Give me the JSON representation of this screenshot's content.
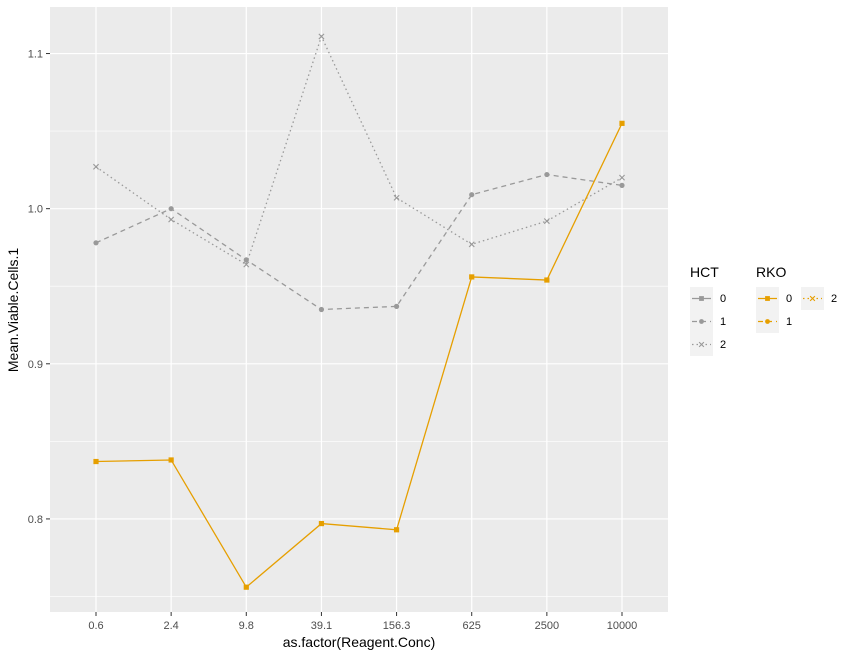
{
  "chart_data": {
    "type": "line",
    "xlabel": "as.factor(Reagent.Conc)",
    "ylabel": "Mean.Viable.Cells.1",
    "categories": [
      "0.6",
      "2.4",
      "9.8",
      "39.1",
      "156.3",
      "625",
      "2500",
      "10000"
    ],
    "ylim": [
      0.74,
      1.13
    ],
    "y_ticks": [
      0.8,
      0.9,
      1.0,
      1.1
    ],
    "y_tick_labels": [
      "0.8",
      "0.9",
      "1.0",
      "1.1"
    ],
    "grid": true,
    "legend_position": "right",
    "legends": [
      {
        "title": "HCT",
        "color": "#999999",
        "entries": [
          "0",
          "1",
          "2"
        ]
      },
      {
        "title": "RKO",
        "color": "#E69F00",
        "entries": [
          "0",
          "1",
          "2"
        ]
      }
    ],
    "series": [
      {
        "name": "1",
        "group": "HCT",
        "color": "#999999",
        "linetype": "dashed",
        "marker": "circle",
        "values": [
          0.978,
          1.0,
          0.967,
          0.935,
          0.937,
          1.009,
          1.022,
          1.015
        ]
      },
      {
        "name": "2",
        "group": "HCT",
        "color": "#999999",
        "linetype": "dotted",
        "marker": "x",
        "values": [
          1.027,
          0.993,
          0.964,
          1.111,
          1.007,
          0.977,
          0.992,
          1.02
        ]
      },
      {
        "name": "0",
        "group": "RKO",
        "color": "#E69F00",
        "linetype": "solid",
        "marker": "square",
        "values": [
          0.837,
          0.838,
          0.756,
          0.797,
          0.793,
          0.956,
          0.954,
          1.055
        ]
      }
    ]
  }
}
